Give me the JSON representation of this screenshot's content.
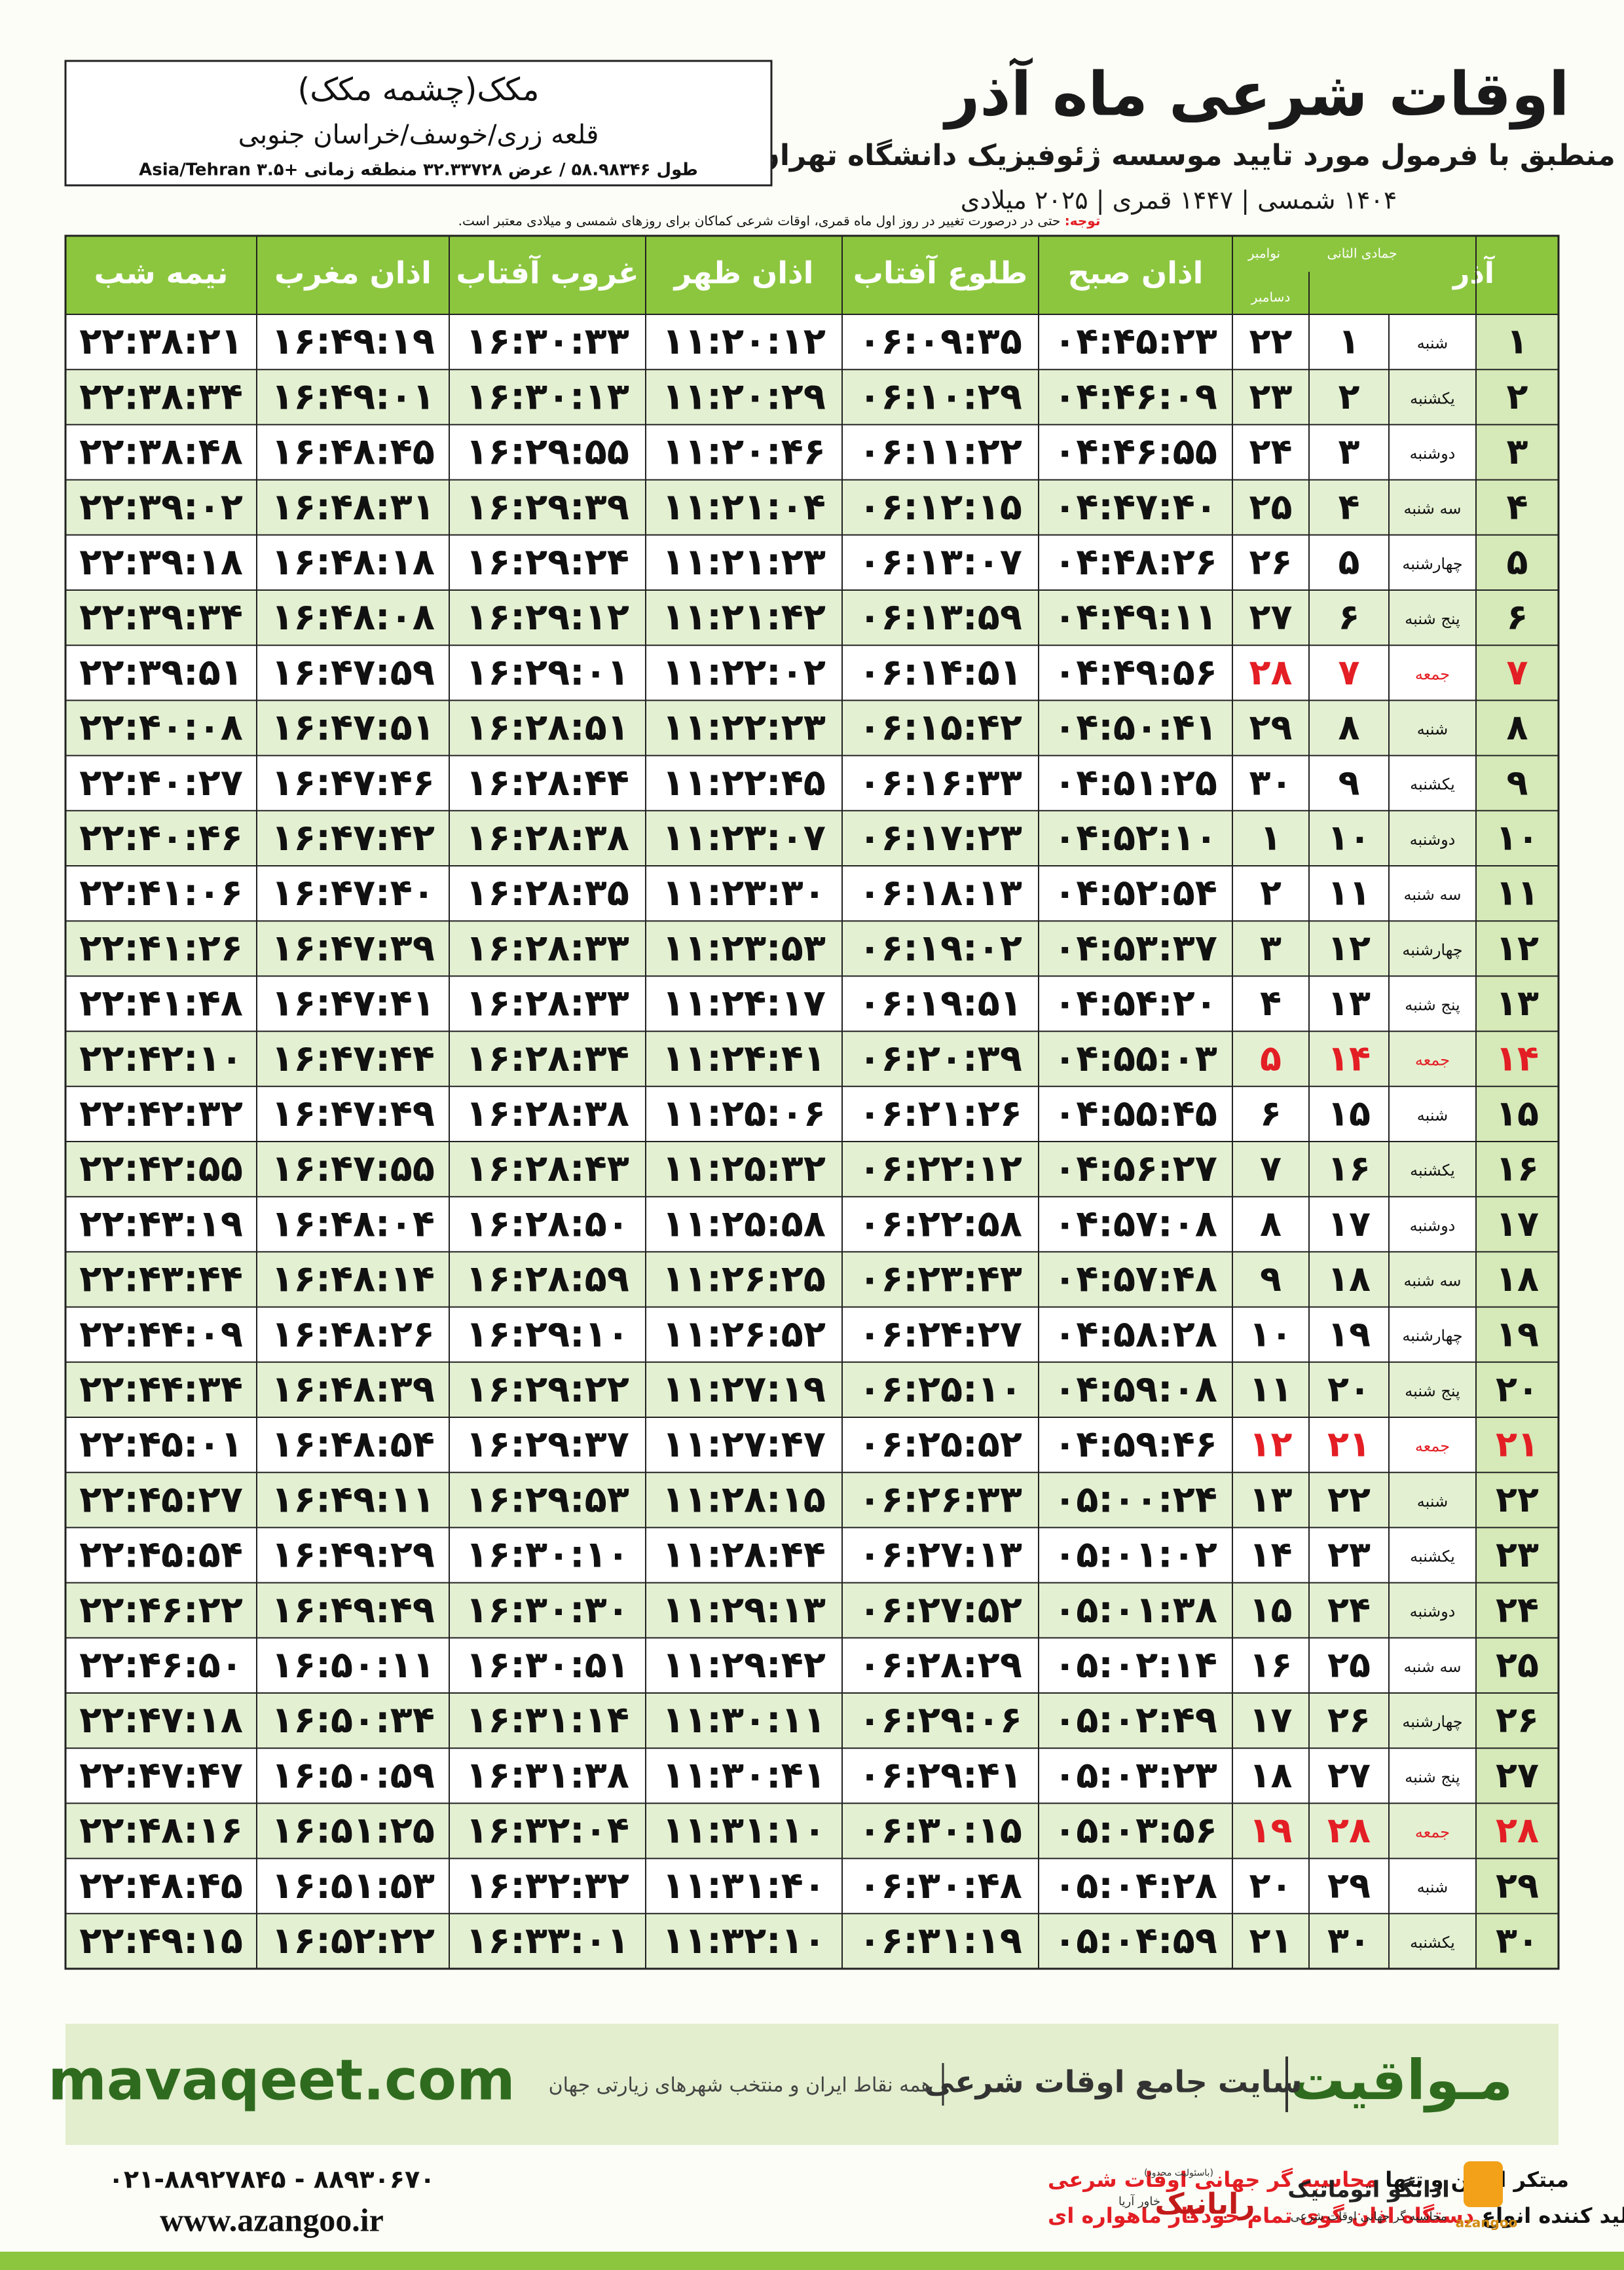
{
  "header": {
    "title": "اوقات شرعی ماه آذر",
    "subtitle": "منطبق با فرمول مورد تایید موسسه ژئوفیزیک دانشگاه تهران",
    "dates": "۱۴۰۴ شمسی | ۱۴۴۷ قمری | ۲۰۲۵ میلادی"
  },
  "location": {
    "name": "مکک(چشمه مکک)",
    "region": "قلعه زری/خوسف/خراسان جنوبی",
    "coords": "طول ۵۸.۹۸۳۴۶ / عرض ۳۲.۳۳۷۲۸ منطقه زمانی +۳.۵ Asia/Tehran"
  },
  "note": {
    "label": "توجه:",
    "text": "حتی در درصورت تغییر در روز اول ماه قمری، اوقات شرعی کماکان برای روزهای شمسی و میلادی معتبر است."
  },
  "table": {
    "headers": [
      "آذر",
      "جمادی الثانی",
      "نوامبر",
      "دسامبر",
      "اذان صبح",
      "طلوع آفتاب",
      "اذان ظهر",
      "غروب آفتاب",
      "اذان مغرب",
      "نیمه شب"
    ],
    "rows": [
      {
        "cells": [
          "۱",
          "شنبه",
          "۱",
          "۲۲",
          "۰۴:۴۵:۲۳",
          "۰۶:۰۹:۳۵",
          "۱۱:۲۰:۱۲",
          "۱۶:۳۰:۳۳",
          "۱۶:۴۹:۱۹",
          "۲۲:۳۸:۲۱"
        ]
      },
      {
        "cells": [
          "۲",
          "یکشنبه",
          "۲",
          "۲۳",
          "۰۴:۴۶:۰۹",
          "۰۶:۱۰:۲۹",
          "۱۱:۲۰:۲۹",
          "۱۶:۳۰:۱۳",
          "۱۶:۴۹:۰۱",
          "۲۲:۳۸:۳۴"
        ]
      },
      {
        "cells": [
          "۳",
          "دوشنبه",
          "۳",
          "۲۴",
          "۰۴:۴۶:۵۵",
          "۰۶:۱۱:۲۲",
          "۱۱:۲۰:۴۶",
          "۱۶:۲۹:۵۵",
          "۱۶:۴۸:۴۵",
          "۲۲:۳۸:۴۸"
        ]
      },
      {
        "cells": [
          "۴",
          "سه شنبه",
          "۴",
          "۲۵",
          "۰۴:۴۷:۴۰",
          "۰۶:۱۲:۱۵",
          "۱۱:۲۱:۰۴",
          "۱۶:۲۹:۳۹",
          "۱۶:۴۸:۳۱",
          "۲۲:۳۹:۰۲"
        ]
      },
      {
        "cells": [
          "۵",
          "چهارشنبه",
          "۵",
          "۲۶",
          "۰۴:۴۸:۲۶",
          "۰۶:۱۳:۰۷",
          "۱۱:۲۱:۲۳",
          "۱۶:۲۹:۲۴",
          "۱۶:۴۸:۱۸",
          "۲۲:۳۹:۱۸"
        ]
      },
      {
        "cells": [
          "۶",
          "پنج شنبه",
          "۶",
          "۲۷",
          "۰۴:۴۹:۱۱",
          "۰۶:۱۳:۵۹",
          "۱۱:۲۱:۴۲",
          "۱۶:۲۹:۱۲",
          "۱۶:۴۸:۰۸",
          "۲۲:۳۹:۳۴"
        ]
      },
      {
        "cells": [
          "۷",
          "جمعه",
          "۷",
          "۲۸",
          "۰۴:۴۹:۵۶",
          "۰۶:۱۴:۵۱",
          "۱۱:۲۲:۰۲",
          "۱۶:۲۹:۰۱",
          "۱۶:۴۷:۵۹",
          "۲۲:۳۹:۵۱"
        ],
        "color": "#e31e24"
      },
      {
        "cells": [
          "۸",
          "شنبه",
          "۸",
          "۲۹",
          "۰۴:۵۰:۴۱",
          "۰۶:۱۵:۴۲",
          "۱۱:۲۲:۲۳",
          "۱۶:۲۸:۵۱",
          "۱۶:۴۷:۵۱",
          "۲۲:۴۰:۰۸"
        ]
      },
      {
        "cells": [
          "۹",
          "یکشنبه",
          "۹",
          "۳۰",
          "۰۴:۵۱:۲۵",
          "۰۶:۱۶:۳۳",
          "۱۱:۲۲:۴۵",
          "۱۶:۲۸:۴۴",
          "۱۶:۴۷:۴۶",
          "۲۲:۴۰:۲۷"
        ]
      },
      {
        "cells": [
          "۱۰",
          "دوشنبه",
          "۱۰",
          "۱",
          "۰۴:۵۲:۱۰",
          "۰۶:۱۷:۲۳",
          "۱۱:۲۳:۰۷",
          "۱۶:۲۸:۳۸",
          "۱۶:۴۷:۴۲",
          "۲۲:۴۰:۴۶"
        ]
      },
      {
        "cells": [
          "۱۱",
          "سه شنبه",
          "۱۱",
          "۲",
          "۰۴:۵۲:۵۴",
          "۰۶:۱۸:۱۳",
          "۱۱:۲۳:۳۰",
          "۱۶:۲۸:۳۵",
          "۱۶:۴۷:۴۰",
          "۲۲:۴۱:۰۶"
        ]
      },
      {
        "cells": [
          "۱۲",
          "چهارشنبه",
          "۱۲",
          "۳",
          "۰۴:۵۳:۳۷",
          "۰۶:۱۹:۰۲",
          "۱۱:۲۳:۵۳",
          "۱۶:۲۸:۳۳",
          "۱۶:۴۷:۳۹",
          "۲۲:۴۱:۲۶"
        ]
      },
      {
        "cells": [
          "۱۳",
          "پنج شنبه",
          "۱۳",
          "۴",
          "۰۴:۵۴:۲۰",
          "۰۶:۱۹:۵۱",
          "۱۱:۲۴:۱۷",
          "۱۶:۲۸:۳۳",
          "۱۶:۴۷:۴۱",
          "۲۲:۴۱:۴۸"
        ]
      },
      {
        "cells": [
          "۱۴",
          "جمعه",
          "۱۴",
          "۵",
          "۰۴:۵۵:۰۳",
          "۰۶:۲۰:۳۹",
          "۱۱:۲۴:۴۱",
          "۱۶:۲۸:۳۴",
          "۱۶:۴۷:۴۴",
          "۲۲:۴۲:۱۰"
        ],
        "color": "#e31e24"
      },
      {
        "cells": [
          "۱۵",
          "شنبه",
          "۱۵",
          "۶",
          "۰۴:۵۵:۴۵",
          "۰۶:۲۱:۲۶",
          "۱۱:۲۵:۰۶",
          "۱۶:۲۸:۳۸",
          "۱۶:۴۷:۴۹",
          "۲۲:۴۲:۳۲"
        ]
      },
      {
        "cells": [
          "۱۶",
          "یکشنبه",
          "۱۶",
          "۷",
          "۰۴:۵۶:۲۷",
          "۰۶:۲۲:۱۲",
          "۱۱:۲۵:۳۲",
          "۱۶:۲۸:۴۳",
          "۱۶:۴۷:۵۵",
          "۲۲:۴۲:۵۵"
        ]
      },
      {
        "cells": [
          "۱۷",
          "دوشنبه",
          "۱۷",
          "۸",
          "۰۴:۵۷:۰۸",
          "۰۶:۲۲:۵۸",
          "۱۱:۲۵:۵۸",
          "۱۶:۲۸:۵۰",
          "۱۶:۴۸:۰۴",
          "۲۲:۴۳:۱۹"
        ]
      },
      {
        "cells": [
          "۱۸",
          "سه شنبه",
          "۱۸",
          "۹",
          "۰۴:۵۷:۴۸",
          "۰۶:۲۳:۴۳",
          "۱۱:۲۶:۲۵",
          "۱۶:۲۸:۵۹",
          "۱۶:۴۸:۱۴",
          "۲۲:۴۳:۴۴"
        ]
      },
      {
        "cells": [
          "۱۹",
          "چهارشنبه",
          "۱۹",
          "۱۰",
          "۰۴:۵۸:۲۸",
          "۰۶:۲۴:۲۷",
          "۱۱:۲۶:۵۲",
          "۱۶:۲۹:۱۰",
          "۱۶:۴۸:۲۶",
          "۲۲:۴۴:۰۹"
        ]
      },
      {
        "cells": [
          "۲۰",
          "پنج شنبه",
          "۲۰",
          "۱۱",
          "۰۴:۵۹:۰۸",
          "۰۶:۲۵:۱۰",
          "۱۱:۲۷:۱۹",
          "۱۶:۲۹:۲۲",
          "۱۶:۴۸:۳۹",
          "۲۲:۴۴:۳۴"
        ]
      },
      {
        "cells": [
          "۲۱",
          "جمعه",
          "۲۱",
          "۱۲",
          "۰۴:۵۹:۴۶",
          "۰۶:۲۵:۵۲",
          "۱۱:۲۷:۴۷",
          "۱۶:۲۹:۳۷",
          "۱۶:۴۸:۵۴",
          "۲۲:۴۵:۰۱"
        ],
        "color": "#e31e24"
      },
      {
        "cells": [
          "۲۲",
          "شنبه",
          "۲۲",
          "۱۳",
          "۰۵:۰۰:۲۴",
          "۰۶:۲۶:۳۳",
          "۱۱:۲۸:۱۵",
          "۱۶:۲۹:۵۳",
          "۱۶:۴۹:۱۱",
          "۲۲:۴۵:۲۷"
        ]
      },
      {
        "cells": [
          "۲۳",
          "یکشنبه",
          "۲۳",
          "۱۴",
          "۰۵:۰۱:۰۲",
          "۰۶:۲۷:۱۳",
          "۱۱:۲۸:۴۴",
          "۱۶:۳۰:۱۰",
          "۱۶:۴۹:۲۹",
          "۲۲:۴۵:۵۴"
        ]
      },
      {
        "cells": [
          "۲۴",
          "دوشنبه",
          "۲۴",
          "۱۵",
          "۰۵:۰۱:۳۸",
          "۰۶:۲۷:۵۲",
          "۱۱:۲۹:۱۳",
          "۱۶:۳۰:۳۰",
          "۱۶:۴۹:۴۹",
          "۲۲:۴۶:۲۲"
        ]
      },
      {
        "cells": [
          "۲۵",
          "سه شنبه",
          "۲۵",
          "۱۶",
          "۰۵:۰۲:۱۴",
          "۰۶:۲۸:۲۹",
          "۱۱:۲۹:۴۲",
          "۱۶:۳۰:۵۱",
          "۱۶:۵۰:۱۱",
          "۲۲:۴۶:۵۰"
        ]
      },
      {
        "cells": [
          "۲۶",
          "چهارشنبه",
          "۲۶",
          "۱۷",
          "۰۵:۰۲:۴۹",
          "۰۶:۲۹:۰۶",
          "۱۱:۳۰:۱۱",
          "۱۶:۳۱:۱۴",
          "۱۶:۵۰:۳۴",
          "۲۲:۴۷:۱۸"
        ]
      },
      {
        "cells": [
          "۲۷",
          "پنج شنبه",
          "۲۷",
          "۱۸",
          "۰۵:۰۳:۲۳",
          "۰۶:۲۹:۴۱",
          "۱۱:۳۰:۴۱",
          "۱۶:۳۱:۳۸",
          "۱۶:۵۰:۵۹",
          "۲۲:۴۷:۴۷"
        ]
      },
      {
        "cells": [
          "۲۸",
          "جمعه",
          "۲۸",
          "۱۹",
          "۰۵:۰۳:۵۶",
          "۰۶:۳۰:۱۵",
          "۱۱:۳۱:۱۰",
          "۱۶:۳۲:۰۴",
          "۱۶:۵۱:۲۵",
          "۲۲:۴۸:۱۶"
        ],
        "color": "#e31e24"
      },
      {
        "cells": [
          "۲۹",
          "شنبه",
          "۲۹",
          "۲۰",
          "۰۵:۰۴:۲۸",
          "۰۶:۳۰:۴۸",
          "۱۱:۳۱:۴۰",
          "۱۶:۳۲:۳۲",
          "۱۶:۵۱:۵۳",
          "۲۲:۴۸:۴۵"
        ]
      },
      {
        "cells": [
          "۳۰",
          "یکشنبه",
          "۳۰",
          "۲۱",
          "۰۵:۰۴:۵۹",
          "۰۶:۳۱:۱۹",
          "۱۱:۳۲:۱۰",
          "۱۶:۳۳:۰۱",
          "۱۶:۵۲:۲۲",
          "۲۲:۴۹:۱۵"
        ]
      }
    ]
  },
  "footer": {
    "site": "mavaqeet.com",
    "brand": "مـواقیت",
    "tagline": "سایت جامع اوقات شرعی",
    "subtitle": "همه نقاط ایران و منتخب شهرهای زیارتی جهان"
  },
  "contact": {
    "phone": "۰۲۱-۸۸۹۲۷۸۴۵ - ۸۸۹۳۰۶۷۰",
    "web": "www.azangoo.ir",
    "line1": "مبتکر اولین و تنها",
    "line1_red": "محاسبه گر جهانی اوقات شرعی",
    "line2": "و تولید کننده انواع",
    "line2_red": "دستگاه اذان گوی تمام خودکار ماهواره ای",
    "logo1": "رایانیک",
    "logo1_sub": "خاور آریا",
    "logo1_note": "(باسئولیت محدود)",
    "logo2": "اذانگو اتوماتیک",
    "logo2_sub": "محاسبه گر جهانی اوقات شرعی",
    "logo3": "azangoo"
  }
}
